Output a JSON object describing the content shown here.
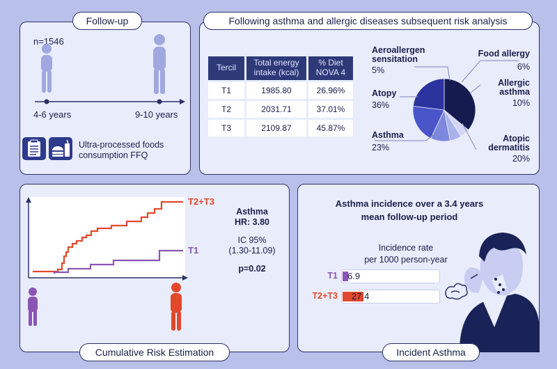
{
  "followup": {
    "title": "Follow-up",
    "n": "n=1546",
    "age_start": "4-6 years",
    "age_end": "9-10 years",
    "ffq_line1": "Ultra-processed foods",
    "ffq_line2": "consumption FFQ"
  },
  "risk_analysis": {
    "title": "Following asthma and allergic diseases subsequent risk analysis",
    "table": {
      "headers": [
        "Tercil",
        "Total energy intake (kcal)",
        "% Diet NOVA 4"
      ],
      "rows": [
        [
          "T1",
          "1985.80",
          "26.96%"
        ],
        [
          "T2",
          "2031.71",
          "37.01%"
        ],
        [
          "T3",
          "2109.87",
          "45.87%"
        ]
      ]
    },
    "pie_labels": {
      "aeroallergen_name_1": "Aeroallergen",
      "aeroallergen_name_2": "sensitation",
      "aeroallergen_pct": "5%",
      "food_allergy_name": "Food allergy",
      "food_allergy_pct": "6%",
      "allergic_asthma_name_1": "Allergic",
      "allergic_asthma_name_2": "asthma",
      "allergic_asthma_pct": "10%",
      "atopy_name": "Atopy",
      "atopy_pct": "36%",
      "asthma_name": "Asthma",
      "asthma_pct": "23%",
      "atopic_dermatitis_name_1": "Atopic",
      "atopic_dermatitis_name_2": "dermatitis",
      "atopic_dermatitis_pct": "20%"
    }
  },
  "chart_data": {
    "type": "pie",
    "categories": [
      "Atopy",
      "Aeroallergen sensitation",
      "Food allergy",
      "Allergic asthma",
      "Atopic dermatitis",
      "Asthma"
    ],
    "values": [
      36,
      5,
      6,
      10,
      20,
      23
    ],
    "colors": [
      "#151b4f",
      "#d4d8f4",
      "#a9b1ea",
      "#7d87dd",
      "#4a55c9",
      "#2a339e"
    ]
  },
  "cumulative": {
    "title": "Cumulative Risk Estimation",
    "series_t2t3": "T2+T3",
    "series_t1": "T1",
    "outcome": "Asthma",
    "hr": "HR: 3.80",
    "ic_label": "IC 95%",
    "ic_range": "(1.30-11.09)",
    "p_value": "p=0.02",
    "colors": {
      "t2t3": "#e2482c",
      "t1": "#8b55b4"
    }
  },
  "incident": {
    "title": "Incident Asthma",
    "heading_1": "Asthma incidence over a 3.4 years",
    "heading_2": "mean follow-up period",
    "rate_label_1": "Incidence rate",
    "rate_label_2": "per 1000 person-year",
    "t1_label": "T1",
    "t1_value": "6.9",
    "t1_rate": 6.9,
    "t2t3_label": "T2+T3",
    "t2t3_value": "27.4",
    "t2t3_rate": 27.4
  }
}
